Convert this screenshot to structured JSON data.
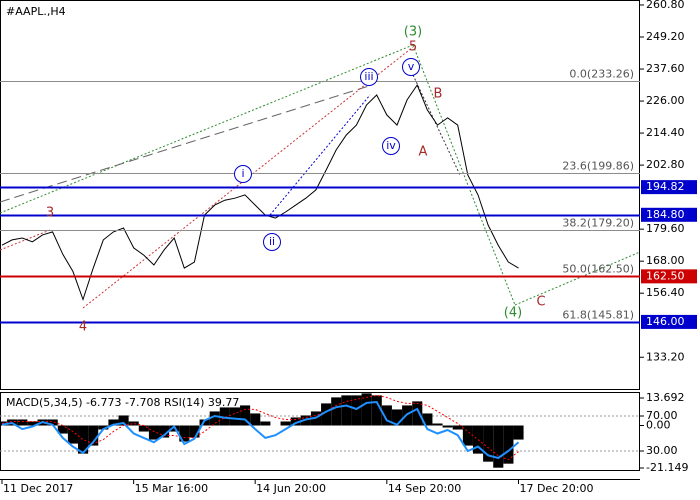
{
  "chart_data": [
    {
      "type": "line",
      "title": "#AAPL.,H4",
      "color": "#000000",
      "xlim": [
        0,
        63
      ],
      "xticks": [
        {
          "value": 0,
          "label": "11 Dec 2017"
        },
        {
          "value": 13,
          "label": "15 Mar 16:00"
        },
        {
          "value": 25,
          "label": "14 Jun 20:00"
        },
        {
          "value": 38,
          "label": "14 Sep 20:00"
        },
        {
          "value": 51,
          "label": "17 Dec 20:00"
        }
      ],
      "ylim": [
        121.7,
        262.6
      ],
      "yticks": [
        {
          "value": 260.8,
          "label": "260.80"
        },
        {
          "value": 249.2,
          "label": "249.20"
        },
        {
          "value": 237.6,
          "label": "237.60"
        },
        {
          "value": 226,
          "label": "226.00"
        },
        {
          "value": 214.4,
          "label": "214.40"
        },
        {
          "value": 202.8,
          "label": "202.80"
        },
        {
          "value": 179.6,
          "label": "179.60"
        },
        {
          "value": 168,
          "label": "168.00"
        },
        {
          "value": 156.4,
          "label": "156.40"
        },
        {
          "value": 133.2,
          "label": "133.20"
        }
      ],
      "values": [
        173.8,
        175.7,
        176.4,
        175.0,
        177.5,
        178.6,
        170.5,
        164.3,
        154.1,
        165.4,
        175.7,
        178.6,
        180.0,
        172.8,
        170.2,
        166.6,
        172.0,
        176.4,
        165.5,
        167.7,
        184.7,
        188.3,
        190.1,
        190.8,
        192.0,
        188.3,
        184.7,
        183.6,
        185.8,
        188.3,
        190.8,
        193.8,
        201.0,
        208.3,
        213.7,
        217.3,
        224.6,
        228.2,
        221.0,
        217.3,
        226.4,
        231.8,
        222.8,
        217.3,
        219.9,
        217.3,
        199.2,
        192.0,
        181.1,
        173.8,
        167.7,
        165.5
      ],
      "fib_levels": [
        {
          "value": 233.26,
          "label": "0.0(233.26)"
        },
        {
          "value": 199.86,
          "label": "23.6(199.86)"
        },
        {
          "value": 179.2,
          "label": "38.2(179.20)"
        },
        {
          "value": 162.5,
          "label": "50.0(162.50)"
        },
        {
          "value": 145.81,
          "label": "61.8(145.81)"
        }
      ],
      "levels": [
        {
          "value": 194.82,
          "label": "194.82",
          "color": "#0000cc"
        },
        {
          "value": 184.8,
          "label": "184.80",
          "color": "#0000cc"
        },
        {
          "value": 162.5,
          "label": "162.50",
          "color": "#cc0000"
        },
        {
          "value": 146,
          "label": "146.00",
          "color": "#0000cc"
        }
      ],
      "annotations": [
        {
          "text": "3",
          "color": "#a52a2a"
        },
        {
          "text": "4",
          "color": "#a52a2a"
        },
        {
          "text": "(3)",
          "color": "#2e8b2e"
        },
        {
          "text": "5",
          "color": "#a52a2a"
        },
        {
          "text": "A",
          "color": "#a52a2a"
        },
        {
          "text": "B",
          "color": "#a52a2a"
        },
        {
          "text": "C",
          "color": "#a52a2a"
        },
        {
          "text": "(4)",
          "color": "#2e8b2e"
        },
        {
          "text": "i",
          "color": "#0000cc",
          "circled": true
        },
        {
          "text": "ii",
          "color": "#0000cc",
          "circled": true
        },
        {
          "text": "iii",
          "color": "#0000cc",
          "circled": true
        },
        {
          "text": "iv",
          "color": "#0000cc",
          "circled": true
        },
        {
          "text": "v",
          "color": "#0000cc",
          "circled": true
        }
      ]
    },
    {
      "type": "macd",
      "title": "MACD(5,34,5) -6.773 -7.708 RSI(14) 39.77",
      "xlim": [
        0,
        63
      ],
      "ylim": [
        -22.15,
        16.68
      ],
      "yticks": [
        {
          "value": 13.692,
          "label": "13.692"
        },
        {
          "value": 0,
          "label": "0.00"
        },
        {
          "value": -21.149,
          "label": "-21.149"
        }
      ],
      "y2lim": [
        8.3,
        97.4
      ],
      "y2ticks": [
        {
          "value": 70,
          "label": "70.00"
        },
        {
          "value": 30,
          "label": "30.00"
        }
      ],
      "series": [
        {
          "type": "bar",
          "color": "#000000",
          "values": [
            2,
            3,
            3,
            2,
            3,
            3,
            -4,
            -9,
            -14,
            -10,
            -2,
            3,
            5,
            2,
            -3,
            -7,
            -6,
            -3,
            -8,
            -6,
            3,
            7,
            9,
            9,
            10,
            6,
            2,
            0,
            2,
            4,
            5,
            7,
            11,
            14,
            15,
            15,
            16,
            15,
            10,
            8,
            10,
            12,
            6,
            1,
            -1,
            -2,
            -10,
            -14,
            -18,
            -21,
            -19,
            -7
          ]
        },
        {
          "type": "line",
          "color": "#ff0000",
          "values": [
            1,
            2,
            2,
            2,
            2,
            2,
            0,
            -3,
            -7,
            -9,
            -7,
            -3,
            0,
            1,
            0,
            -3,
            -5,
            -5,
            -6,
            -6,
            -3,
            1,
            4,
            6,
            8,
            8,
            6,
            4,
            3,
            3,
            4,
            5,
            7,
            10,
            12,
            13,
            14,
            15,
            14,
            12,
            11,
            11,
            10,
            7,
            4,
            1,
            -3,
            -7,
            -11,
            -15,
            -17,
            -13
          ]
        },
        {
          "type": "line",
          "axis": "y2",
          "color": "#1e90ff",
          "values": [
            60,
            62,
            55,
            58,
            63,
            60,
            45,
            35,
            28,
            40,
            55,
            60,
            62,
            50,
            45,
            40,
            48,
            58,
            38,
            44,
            65,
            70,
            68,
            67,
            66,
            55,
            45,
            48,
            55,
            62,
            66,
            68,
            75,
            80,
            82,
            78,
            85,
            86,
            65,
            60,
            72,
            78,
            55,
            50,
            54,
            48,
            30,
            35,
            25,
            22,
            30,
            40
          ]
        }
      ]
    }
  ]
}
